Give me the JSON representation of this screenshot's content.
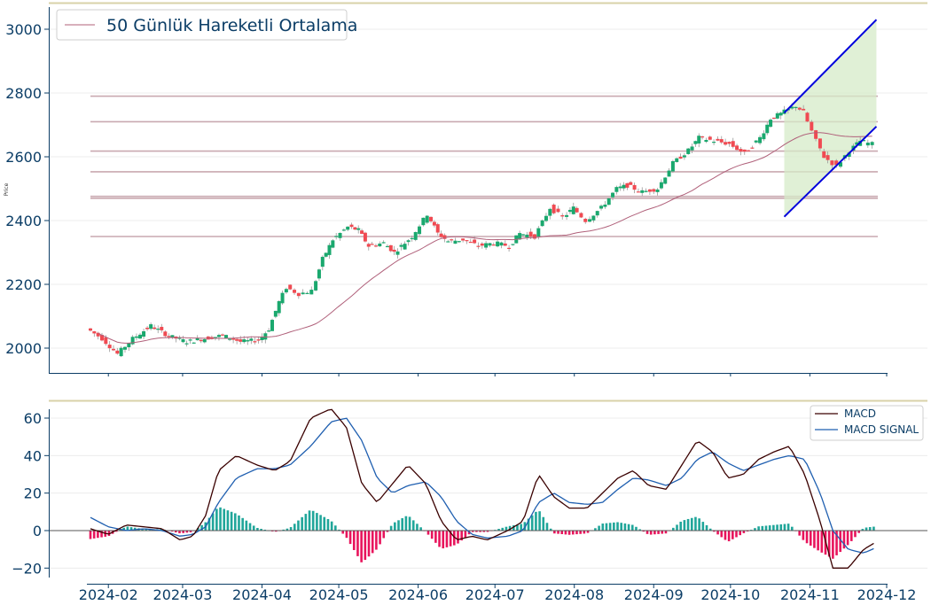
{
  "chart_data": [
    {
      "type": "candlestick",
      "ylabel": "Price",
      "ylim": [
        1920,
        3060
      ],
      "yticks": [
        "2000",
        "2200",
        "2400",
        "2600",
        "2800",
        "3000"
      ],
      "legend": {
        "entries": [
          "50 Günlük Hareketli Ortalama"
        ],
        "placement": "top-left"
      },
      "moving_average": {
        "name": "50 Günlük Hareketli Ortalama",
        "color": "#b0607a"
      },
      "horizontal_levels": [
        2790,
        2710,
        2618,
        2553,
        2476,
        2470,
        2350
      ],
      "channel": {
        "upper": {
          "start": [
            "2024-10-22",
            2738
          ],
          "end": [
            "2024-11-27",
            3030
          ]
        },
        "lower": {
          "start": [
            "2024-10-22",
            2412
          ],
          "end": [
            "2024-11-27",
            2695
          ]
        },
        "fill_color": "#d5ebc8",
        "line_color": "#0000dd"
      },
      "colors": {
        "up": "#1aa86e",
        "down": "#f04a52"
      },
      "x_range": [
        "2024-01-25",
        "2024-11-27"
      ],
      "close": [
        {
          "date": "2024-01-25",
          "close": 2062
        },
        {
          "date": "2024-01-31",
          "close": 2030
        },
        {
          "date": "2024-02-06",
          "close": 1982
        },
        {
          "date": "2024-02-12",
          "close": 2030
        },
        {
          "date": "2024-02-19",
          "close": 2070
        },
        {
          "date": "2024-02-26",
          "close": 2038
        },
        {
          "date": "2024-03-04",
          "close": 2020
        },
        {
          "date": "2024-03-11",
          "close": 2030
        },
        {
          "date": "2024-03-18",
          "close": 2040
        },
        {
          "date": "2024-03-25",
          "close": 2020
        },
        {
          "date": "2024-04-01",
          "close": 2025
        },
        {
          "date": "2024-04-05",
          "close": 2060
        },
        {
          "date": "2024-04-09",
          "close": 2145
        },
        {
          "date": "2024-04-12",
          "close": 2190
        },
        {
          "date": "2024-04-17",
          "close": 2170
        },
        {
          "date": "2024-04-22",
          "close": 2180
        },
        {
          "date": "2024-04-26",
          "close": 2280
        },
        {
          "date": "2024-04-30",
          "close": 2340
        },
        {
          "date": "2024-05-06",
          "close": 2380
        },
        {
          "date": "2024-05-10",
          "close": 2370
        },
        {
          "date": "2024-05-14",
          "close": 2320
        },
        {
          "date": "2024-05-20",
          "close": 2330
        },
        {
          "date": "2024-05-24",
          "close": 2300
        },
        {
          "date": "2024-05-31",
          "close": 2350
        },
        {
          "date": "2024-06-06",
          "close": 2420
        },
        {
          "date": "2024-06-10",
          "close": 2360
        },
        {
          "date": "2024-06-14",
          "close": 2335
        },
        {
          "date": "2024-06-20",
          "close": 2340
        },
        {
          "date": "2024-06-26",
          "close": 2320
        },
        {
          "date": "2024-07-02",
          "close": 2330
        },
        {
          "date": "2024-07-08",
          "close": 2320
        },
        {
          "date": "2024-07-12",
          "close": 2360
        },
        {
          "date": "2024-07-18",
          "close": 2350
        },
        {
          "date": "2024-07-24",
          "close": 2440
        },
        {
          "date": "2024-07-29",
          "close": 2410
        },
        {
          "date": "2024-08-02",
          "close": 2440
        },
        {
          "date": "2024-08-07",
          "close": 2400
        },
        {
          "date": "2024-08-13",
          "close": 2440
        },
        {
          "date": "2024-08-19",
          "close": 2500
        },
        {
          "date": "2024-08-23",
          "close": 2510
        },
        {
          "date": "2024-08-29",
          "close": 2490
        },
        {
          "date": "2024-09-04",
          "close": 2500
        },
        {
          "date": "2024-09-10",
          "close": 2580
        },
        {
          "date": "2024-09-16",
          "close": 2620
        },
        {
          "date": "2024-09-20",
          "close": 2660
        },
        {
          "date": "2024-09-26",
          "close": 2650
        },
        {
          "date": "2024-10-02",
          "close": 2640
        },
        {
          "date": "2024-10-08",
          "close": 2610
        },
        {
          "date": "2024-10-14",
          "close": 2660
        },
        {
          "date": "2024-10-18",
          "close": 2720
        },
        {
          "date": "2024-10-22",
          "close": 2735
        },
        {
          "date": "2024-10-28",
          "close": 2760
        },
        {
          "date": "2024-10-31",
          "close": 2740
        },
        {
          "date": "2024-11-05",
          "close": 2650
        },
        {
          "date": "2024-11-08",
          "close": 2600
        },
        {
          "date": "2024-11-13",
          "close": 2570
        },
        {
          "date": "2024-11-18",
          "close": 2620
        },
        {
          "date": "2024-11-22",
          "close": 2650
        },
        {
          "date": "2024-11-27",
          "close": 2640
        }
      ]
    },
    {
      "type": "line+bar",
      "ylim": [
        -25,
        68
      ],
      "yticks": [
        "60",
        "40",
        "20",
        "0",
        "−20"
      ],
      "xticks": [
        "2024-02",
        "2024-03",
        "2024-04",
        "2024-05",
        "2024-06",
        "2024-07",
        "2024-08",
        "2024-09",
        "2024-10",
        "2024-11",
        "2024-12"
      ],
      "legend": {
        "entries": [
          "MACD",
          "MACD SIGNAL"
        ],
        "placement": "top-right"
      },
      "series": [
        {
          "name": "MACD",
          "color": "#3a0000",
          "values": [
            [
              "2024-01-25",
              1
            ],
            [
              "2024-02-01",
              -2
            ],
            [
              "2024-02-08",
              3
            ],
            [
              "2024-02-15",
              2
            ],
            [
              "2024-02-22",
              1
            ],
            [
              "2024-02-29",
              -5
            ],
            [
              "2024-03-05",
              -3
            ],
            [
              "2024-03-10",
              8
            ],
            [
              "2024-03-15",
              32
            ],
            [
              "2024-03-22",
              40
            ],
            [
              "2024-03-30",
              35
            ],
            [
              "2024-04-06",
              32
            ],
            [
              "2024-04-12",
              37
            ],
            [
              "2024-04-20",
              60
            ],
            [
              "2024-04-28",
              65
            ],
            [
              "2024-05-04",
              55
            ],
            [
              "2024-05-10",
              25
            ],
            [
              "2024-05-16",
              15
            ],
            [
              "2024-05-22",
              25
            ],
            [
              "2024-05-28",
              35
            ],
            [
              "2024-06-04",
              25
            ],
            [
              "2024-06-10",
              5
            ],
            [
              "2024-06-16",
              -5
            ],
            [
              "2024-06-22",
              -3
            ],
            [
              "2024-06-28",
              -5
            ],
            [
              "2024-07-06",
              0
            ],
            [
              "2024-07-12",
              5
            ],
            [
              "2024-07-18",
              30
            ],
            [
              "2024-07-24",
              18
            ],
            [
              "2024-07-30",
              12
            ],
            [
              "2024-08-06",
              12
            ],
            [
              "2024-08-12",
              20
            ],
            [
              "2024-08-18",
              28
            ],
            [
              "2024-08-24",
              32
            ],
            [
              "2024-08-30",
              24
            ],
            [
              "2024-09-06",
              22
            ],
            [
              "2024-09-12",
              35
            ],
            [
              "2024-09-18",
              48
            ],
            [
              "2024-09-24",
              42
            ],
            [
              "2024-09-30",
              28
            ],
            [
              "2024-10-06",
              30
            ],
            [
              "2024-10-12",
              38
            ],
            [
              "2024-10-18",
              42
            ],
            [
              "2024-10-24",
              45
            ],
            [
              "2024-10-30",
              30
            ],
            [
              "2024-11-05",
              5
            ],
            [
              "2024-11-10",
              -20
            ],
            [
              "2024-11-16",
              -20
            ],
            [
              "2024-11-22",
              -10
            ],
            [
              "2024-11-27",
              -6
            ]
          ]
        },
        {
          "name": "MACD SIGNAL",
          "color": "#1f5fb0",
          "values": [
            [
              "2024-01-25",
              7
            ],
            [
              "2024-02-01",
              2
            ],
            [
              "2024-02-08",
              0
            ],
            [
              "2024-02-15",
              1
            ],
            [
              "2024-02-22",
              0
            ],
            [
              "2024-02-29",
              -3
            ],
            [
              "2024-03-05",
              -2
            ],
            [
              "2024-03-10",
              2
            ],
            [
              "2024-03-15",
              15
            ],
            [
              "2024-03-22",
              28
            ],
            [
              "2024-03-30",
              33
            ],
            [
              "2024-04-06",
              33
            ],
            [
              "2024-04-12",
              35
            ],
            [
              "2024-04-20",
              45
            ],
            [
              "2024-04-28",
              58
            ],
            [
              "2024-05-04",
              60
            ],
            [
              "2024-05-10",
              48
            ],
            [
              "2024-05-16",
              28
            ],
            [
              "2024-05-22",
              20
            ],
            [
              "2024-05-28",
              24
            ],
            [
              "2024-06-04",
              26
            ],
            [
              "2024-06-10",
              18
            ],
            [
              "2024-06-16",
              5
            ],
            [
              "2024-06-22",
              -2
            ],
            [
              "2024-06-28",
              -4
            ],
            [
              "2024-07-06",
              -3
            ],
            [
              "2024-07-12",
              0
            ],
            [
              "2024-07-18",
              15
            ],
            [
              "2024-07-24",
              20
            ],
            [
              "2024-07-30",
              15
            ],
            [
              "2024-08-06",
              14
            ],
            [
              "2024-08-12",
              15
            ],
            [
              "2024-08-18",
              22
            ],
            [
              "2024-08-24",
              28
            ],
            [
              "2024-08-30",
              27
            ],
            [
              "2024-09-06",
              24
            ],
            [
              "2024-09-12",
              28
            ],
            [
              "2024-09-18",
              38
            ],
            [
              "2024-09-24",
              42
            ],
            [
              "2024-09-30",
              36
            ],
            [
              "2024-10-06",
              32
            ],
            [
              "2024-10-12",
              35
            ],
            [
              "2024-10-18",
              38
            ],
            [
              "2024-10-24",
              40
            ],
            [
              "2024-10-30",
              38
            ],
            [
              "2024-11-05",
              20
            ],
            [
              "2024-11-10",
              0
            ],
            [
              "2024-11-16",
              -10
            ],
            [
              "2024-11-22",
              -12
            ],
            [
              "2024-11-27",
              -9
            ]
          ]
        }
      ],
      "histogram": {
        "colors": {
          "positive": "#20a69a",
          "negative": "#e8145c"
        },
        "note_free": true,
        "derived_from": "MACD minus MACD SIGNAL"
      }
    }
  ]
}
